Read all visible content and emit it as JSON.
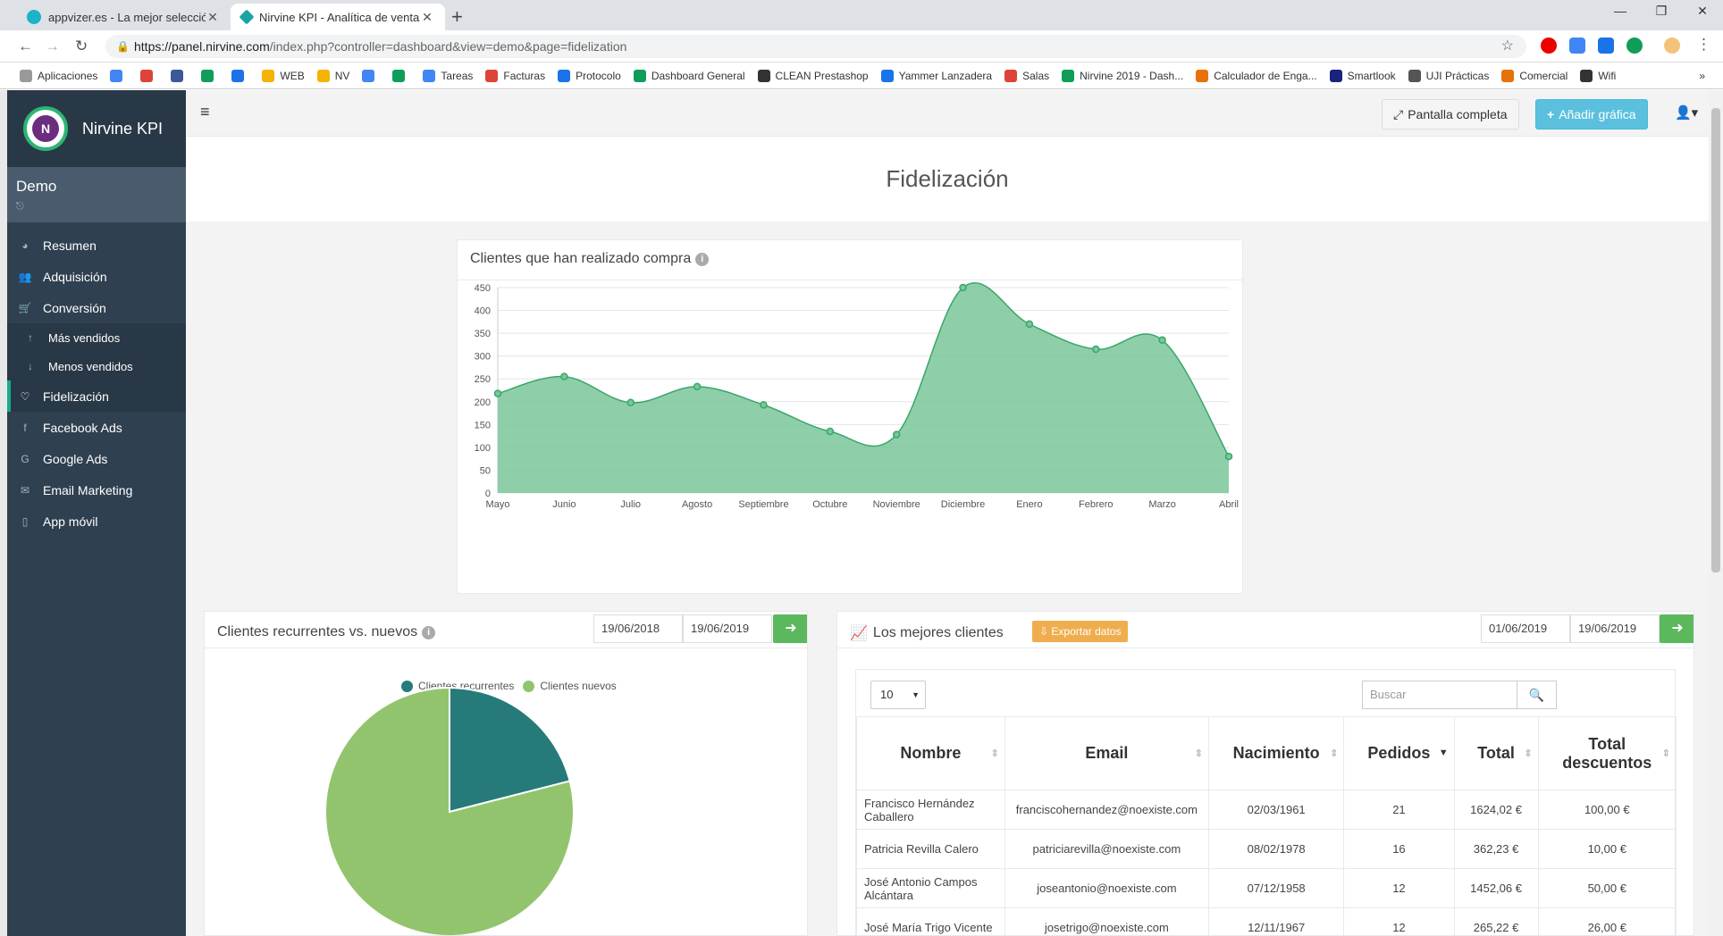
{
  "browser": {
    "tabs": [
      {
        "title": "appvizer.es - La mejor selección d",
        "active": false
      },
      {
        "title": "Nirvine KPI - Analítica de ventas",
        "active": true
      }
    ],
    "url_host": "https://panel.nirvine.com",
    "url_path": "/index.php?controller=dashboard&view=demo&page=fidelization",
    "bookmarks": [
      {
        "label": "Aplicaciones",
        "color": "#999999"
      },
      {
        "label": "",
        "color": "#4285f4"
      },
      {
        "label": "",
        "color": "#db4437"
      },
      {
        "label": "",
        "color": "#3b5998"
      },
      {
        "label": "",
        "color": "#0f9d58"
      },
      {
        "label": "",
        "color": "#1a73e8"
      },
      {
        "label": "WEB",
        "color": "#f4b400"
      },
      {
        "label": "NV",
        "color": "#f4b400"
      },
      {
        "label": "",
        "color": "#4285f4"
      },
      {
        "label": "",
        "color": "#0f9d58"
      },
      {
        "label": "Tareas",
        "color": "#4285f4"
      },
      {
        "label": "Facturas",
        "color": "#db4437"
      },
      {
        "label": "Protocolo",
        "color": "#1a73e8"
      },
      {
        "label": "Dashboard General",
        "color": "#0f9d58"
      },
      {
        "label": "CLEAN Prestashop",
        "color": "#333333"
      },
      {
        "label": "Yammer Lanzadera",
        "color": "#1a73e8"
      },
      {
        "label": "Salas",
        "color": "#db4437"
      },
      {
        "label": "Nirvine 2019 - Dash...",
        "color": "#0f9d58"
      },
      {
        "label": "Calculador de Enga...",
        "color": "#e8710a"
      },
      {
        "label": "Smartlook",
        "color": "#1a237e"
      },
      {
        "label": "UJI Prácticas",
        "color": "#555555"
      },
      {
        "label": "Comercial",
        "color": "#e8710a"
      },
      {
        "label": "Wifi",
        "color": "#333333"
      }
    ],
    "overflow": "»"
  },
  "app": {
    "brand": "Nirvine KPI",
    "logo_letter": "N",
    "user": "Demo",
    "nav": [
      {
        "label": "Resumen",
        "icon": "dashboard-icon",
        "glyph": "◕",
        "type": "main"
      },
      {
        "label": "Adquisición",
        "icon": "users-icon",
        "glyph": "👥",
        "type": "main"
      },
      {
        "label": "Conversión",
        "icon": "cart-icon",
        "glyph": "🛒",
        "type": "main"
      },
      {
        "label": "Más vendidos",
        "icon": "arrow-up-icon",
        "glyph": "↑",
        "type": "sub"
      },
      {
        "label": "Menos vendidos",
        "icon": "arrow-down-icon",
        "glyph": "↓",
        "type": "sub"
      },
      {
        "label": "Fidelización",
        "icon": "heart-icon",
        "glyph": "♡",
        "type": "active"
      },
      {
        "label": "Facebook Ads",
        "icon": "facebook-icon",
        "glyph": "f",
        "type": "main"
      },
      {
        "label": "Google Ads",
        "icon": "google-icon",
        "glyph": "G",
        "type": "main"
      },
      {
        "label": "Email Marketing",
        "icon": "envelope-icon",
        "glyph": "✉",
        "type": "main"
      },
      {
        "label": "App móvil",
        "icon": "mobile-icon",
        "glyph": "▯",
        "type": "main"
      }
    ],
    "topbar": {
      "fullscreen": "Pantalla completa",
      "add_chart": "Añadir gráfica"
    },
    "page_title": "Fidelización"
  },
  "panels": {
    "purchases": {
      "title": "Clientes que han realizado compra"
    },
    "recurrent": {
      "title": "Clientes recurrentes vs. nuevos",
      "date_from": "19/06/2018",
      "date_to": "19/06/2019"
    },
    "best": {
      "title": "Los mejores clientes",
      "export": "Exportar datos",
      "date_from": "01/06/2019",
      "date_to": "19/06/2019",
      "page_length": "10",
      "search_placeholder": "Buscar",
      "columns": [
        "Nombre",
        "Email",
        "Nacimiento",
        "Pedidos",
        "Total",
        "Total descuentos"
      ],
      "rows": [
        [
          "Francisco Hernández Caballero",
          "franciscohernandez@noexiste.com",
          "02/03/1961",
          "21",
          "1624,02 €",
          "100,00 €"
        ],
        [
          "Patricia Revilla Calero",
          "patriciarevilla@noexiste.com",
          "08/02/1978",
          "16",
          "362,23 €",
          "10,00 €"
        ],
        [
          "José Antonio Campos Alcántara",
          "joseantonio@noexiste.com",
          "07/12/1958",
          "12",
          "1452,06 €",
          "50,00 €"
        ],
        [
          "José María Trigo Vicente",
          "josetrigo@noexiste.com",
          "12/11/1967",
          "12",
          "265,22 €",
          "26,00 €"
        ]
      ]
    }
  },
  "chart_data": [
    {
      "type": "area",
      "title": "Clientes que han realizado compra",
      "categories": [
        "Mayo",
        "Junio",
        "Julio",
        "Agosto",
        "Septiembre",
        "Octubre",
        "Noviembre",
        "Diciembre",
        "Enero",
        "Febrero",
        "Marzo",
        "Abril"
      ],
      "values": [
        218,
        255,
        198,
        233,
        193,
        135,
        128,
        450,
        370,
        315,
        335,
        80
      ],
      "ylim": [
        0,
        450
      ],
      "yticks": [
        0,
        50,
        100,
        150,
        200,
        250,
        300,
        350,
        400,
        450
      ],
      "grid": true,
      "color": "#7ac79a",
      "line_color": "#3aa66a"
    },
    {
      "type": "pie",
      "title": "Clientes recurrentes vs. nuevos",
      "labels": [
        "Clientes recurrentes",
        "Clientes nuevos"
      ],
      "values": [
        21,
        79
      ],
      "colors": [
        "#267a7a",
        "#92c46e"
      ],
      "legend": "top"
    }
  ]
}
